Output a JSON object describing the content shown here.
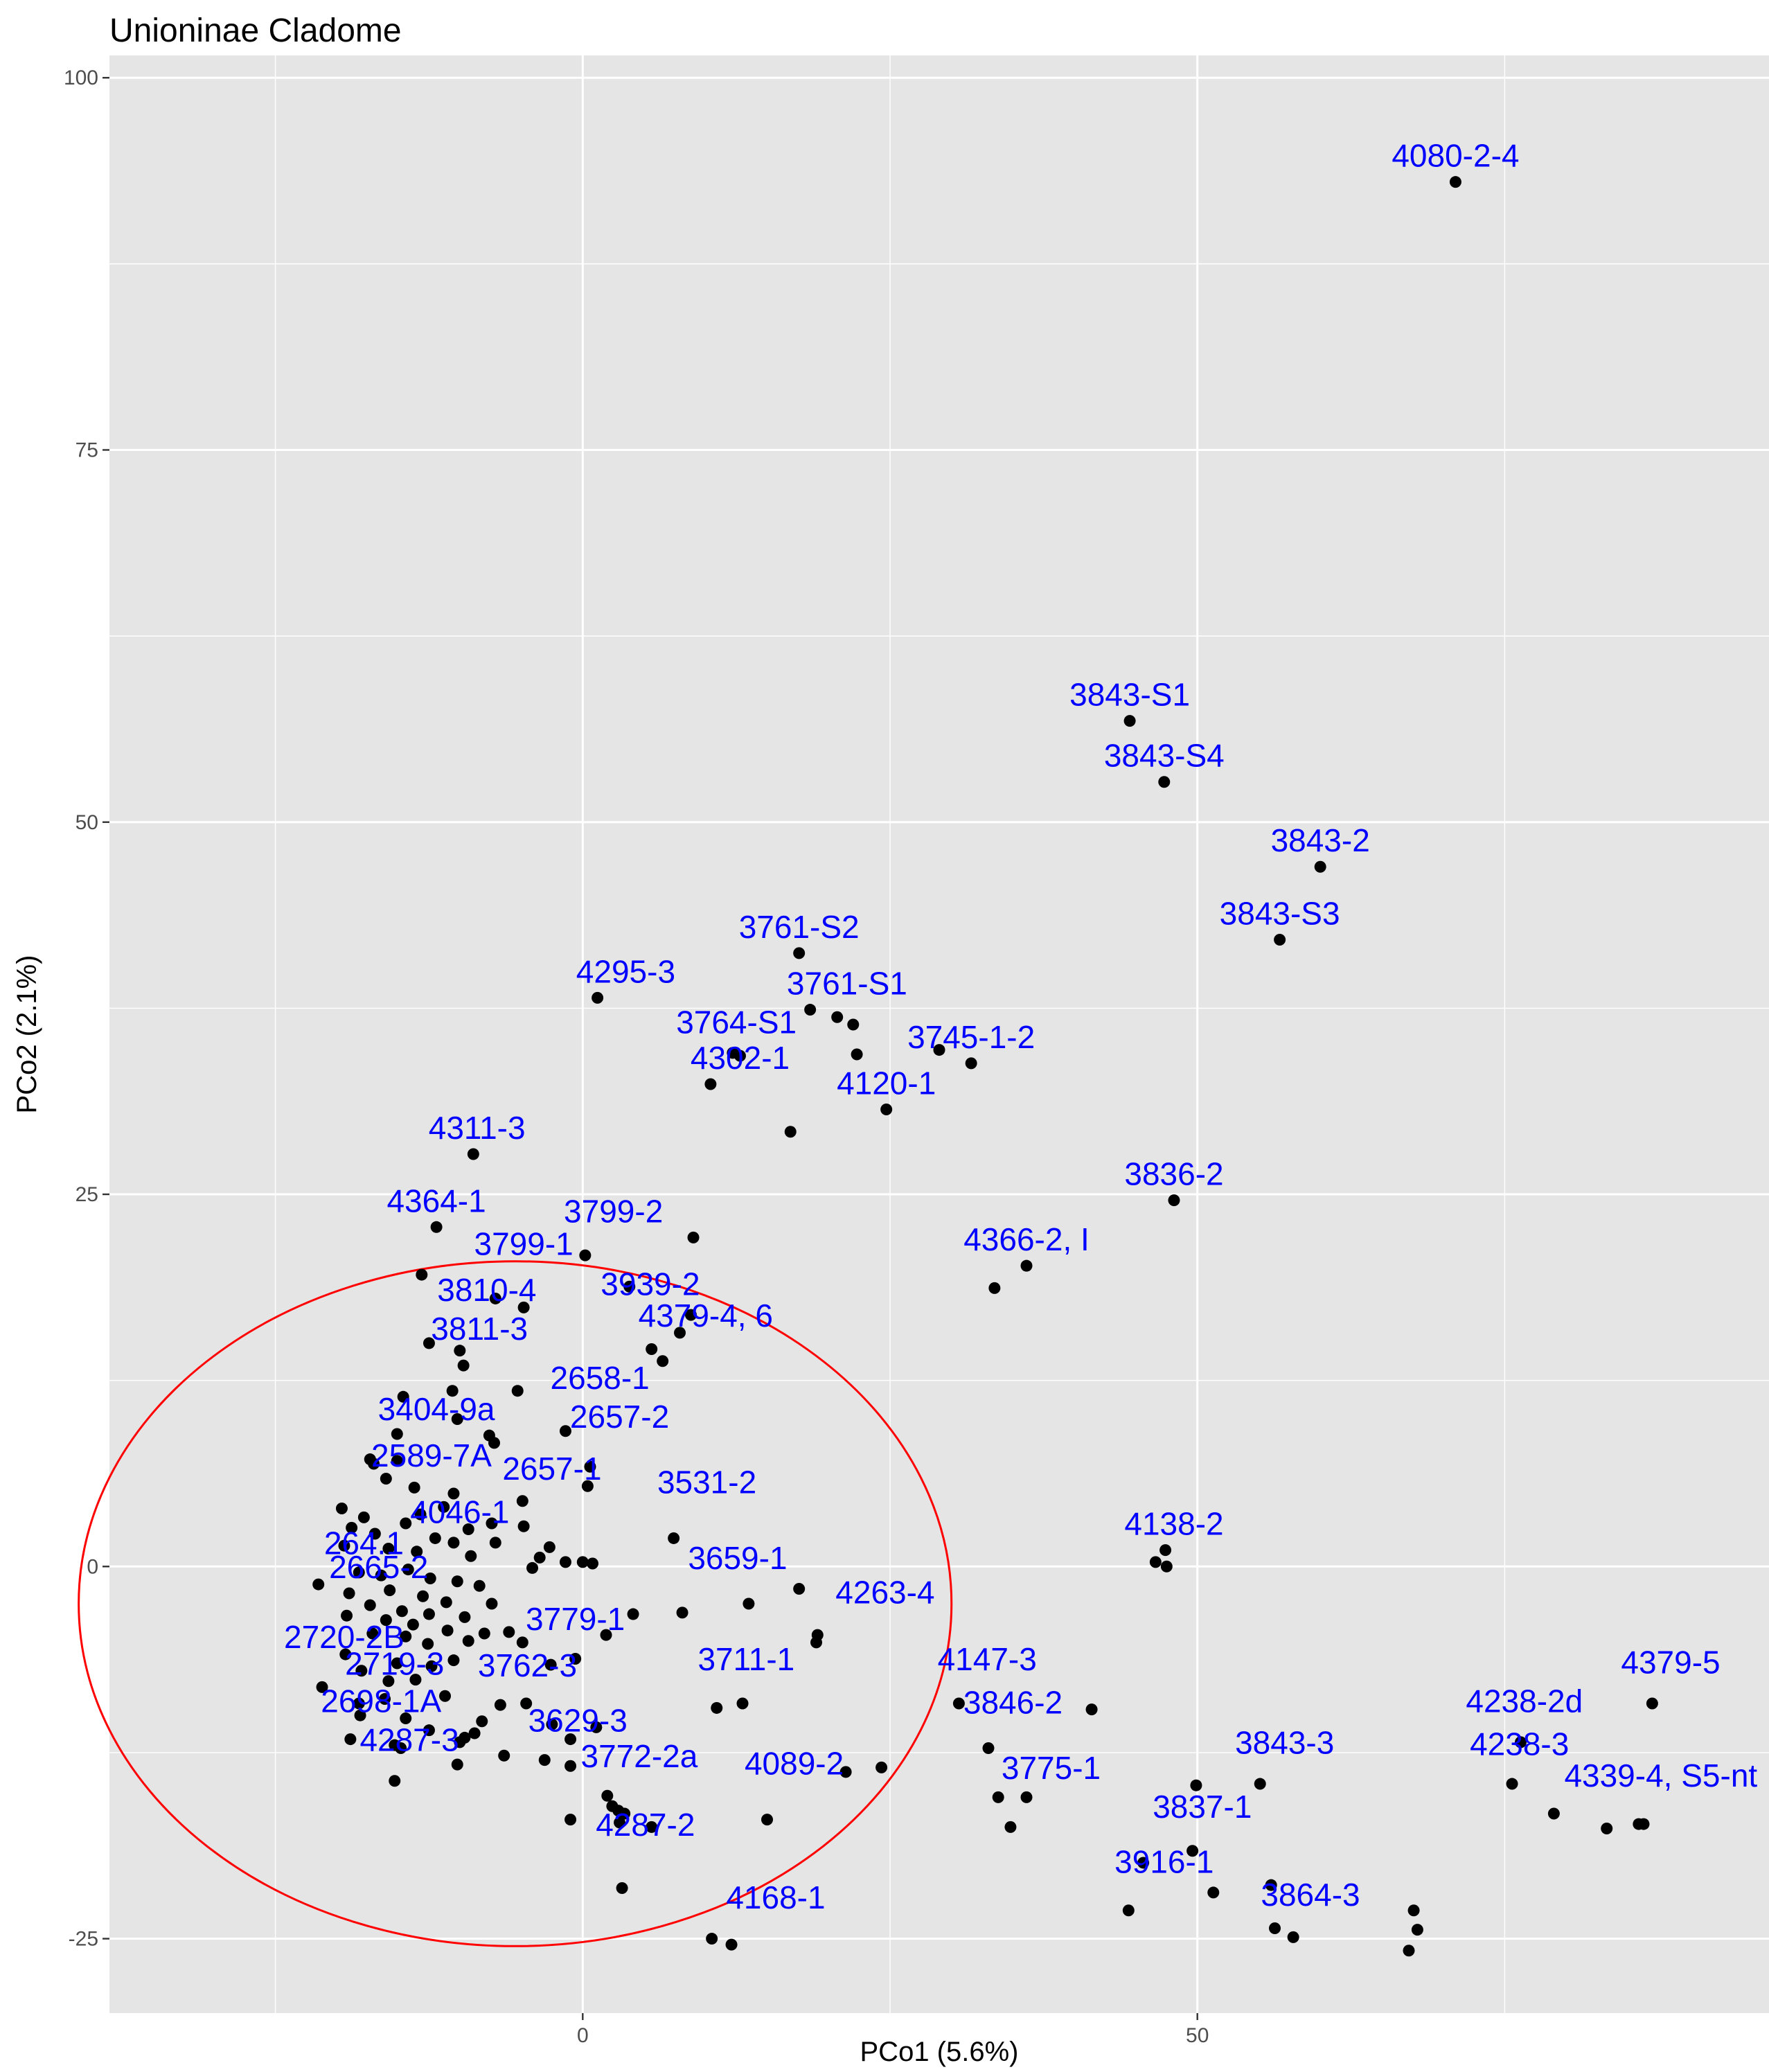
{
  "chart_data": {
    "type": "scatter",
    "title": "Unioninae Cladome",
    "xlabel": "PCo1 (5.6%)",
    "ylabel": "PCo2 (2.1%)",
    "xlim": [
      -38.5,
      96.5
    ],
    "ylim": [
      -30,
      101.5
    ],
    "x_ticks": [
      0,
      50
    ],
    "x_tick_labels": [
      "0",
      "50"
    ],
    "x_minor_ticks": [
      -25,
      25,
      75
    ],
    "y_ticks": [
      -25,
      0,
      25,
      50,
      75,
      100
    ],
    "y_tick_labels": [
      "-25",
      "0",
      "25",
      "50",
      "75",
      "100"
    ],
    "y_minor_ticks": [
      -12.5,
      12.5,
      37.5,
      62.5,
      87.5
    ],
    "grid": true,
    "colors": {
      "panel": "#E5E5E5",
      "points": "#000000",
      "labels": "#0000FF",
      "ellipse": "#FF0000"
    },
    "ellipse": {
      "center": [
        -5.5,
        -2.5
      ],
      "semi_x": 35.5,
      "semi_y": 23
    },
    "points": [
      {
        "x": 71,
        "y": 93
      },
      {
        "x": 44.5,
        "y": 56.8
      },
      {
        "x": 47.3,
        "y": 52.7
      },
      {
        "x": 60,
        "y": 47
      },
      {
        "x": 56.7,
        "y": 42.1
      },
      {
        "x": 17.6,
        "y": 41.2
      },
      {
        "x": 18.5,
        "y": 37.4
      },
      {
        "x": 20.7,
        "y": 36.9
      },
      {
        "x": 22,
        "y": 36.4
      },
      {
        "x": 22.3,
        "y": 34.4
      },
      {
        "x": 1.2,
        "y": 38.2
      },
      {
        "x": 12.2,
        "y": 34.5
      },
      {
        "x": 12.8,
        "y": 34.3
      },
      {
        "x": 10.4,
        "y": 32.4
      },
      {
        "x": 29,
        "y": 34.7
      },
      {
        "x": 31.6,
        "y": 33.8
      },
      {
        "x": 24.7,
        "y": 30.7
      },
      {
        "x": 16.9,
        "y": 29.2
      },
      {
        "x": -8.9,
        "y": 27.7
      },
      {
        "x": 48.1,
        "y": 24.6
      },
      {
        "x": -11.9,
        "y": 22.8
      },
      {
        "x": 9.0,
        "y": 22.1
      },
      {
        "x": 36.1,
        "y": 20.2
      },
      {
        "x": 33.5,
        "y": 18.7
      },
      {
        "x": -13.1,
        "y": 19.6
      },
      {
        "x": 0.2,
        "y": 20.9
      },
      {
        "x": 3.8,
        "y": 18.8
      },
      {
        "x": -7.1,
        "y": 18.0
      },
      {
        "x": -4.8,
        "y": 17.4
      },
      {
        "x": 8.8,
        "y": 16.9
      },
      {
        "x": 7.9,
        "y": 15.7
      },
      {
        "x": 5.6,
        "y": 14.6
      },
      {
        "x": 6.5,
        "y": 13.8
      },
      {
        "x": -12.5,
        "y": 15
      },
      {
        "x": -10,
        "y": 14.5
      },
      {
        "x": -9.7,
        "y": 13.5
      },
      {
        "x": -10.6,
        "y": 11.8
      },
      {
        "x": -5.3,
        "y": 11.8
      },
      {
        "x": -14.6,
        "y": 11.4
      },
      {
        "x": -10.2,
        "y": 9.9
      },
      {
        "x": -1.4,
        "y": 9.1
      },
      {
        "x": -7.6,
        "y": 8.8
      },
      {
        "x": -7.2,
        "y": 8.3
      },
      {
        "x": -15.1,
        "y": 8.9
      },
      {
        "x": 0.6,
        "y": 6.7
      },
      {
        "x": 0.4,
        "y": 5.4
      },
      {
        "x": -17.3,
        "y": 7.2
      },
      {
        "x": -17.0,
        "y": 6.9
      },
      {
        "x": -15.1,
        "y": 7.1
      },
      {
        "x": -16.0,
        "y": 5.9
      },
      {
        "x": -13.7,
        "y": 5.3
      },
      {
        "x": -10.5,
        "y": 4.9
      },
      {
        "x": -4.9,
        "y": 4.4
      },
      {
        "x": -11.3,
        "y": 4.0
      },
      {
        "x": -13.2,
        "y": 3.5
      },
      {
        "x": -17.8,
        "y": 3.3
      },
      {
        "x": -19.6,
        "y": 3.9
      },
      {
        "x": -7.4,
        "y": 2.9
      },
      {
        "x": -4.8,
        "y": 2.7
      },
      {
        "x": 7.4,
        "y": 1.9
      },
      {
        "x": -9.3,
        "y": 2.5
      },
      {
        "x": -14.4,
        "y": 2.9
      },
      {
        "x": -16.9,
        "y": 2.2
      },
      {
        "x": -18.8,
        "y": 2.6
      },
      {
        "x": -12.0,
        "y": 1.9
      },
      {
        "x": -10.5,
        "y": 1.6
      },
      {
        "x": -7.1,
        "y": 1.6
      },
      {
        "x": -2.7,
        "y": 1.3
      },
      {
        "x": -15.8,
        "y": 1.2
      },
      {
        "x": -19.4,
        "y": 1.4
      },
      {
        "x": -13.5,
        "y": 1.0
      },
      {
        "x": -9.1,
        "y": 0.7
      },
      {
        "x": -3.5,
        "y": 0.6
      },
      {
        "x": -1.4,
        "y": 0.3
      },
      {
        "x": 0,
        "y": 0.3
      },
      {
        "x": 0.8,
        "y": 0.2
      },
      {
        "x": 46.6,
        "y": 0.3
      },
      {
        "x": 47.4,
        "y": 1.1
      },
      {
        "x": 47.5,
        "y": 0.0
      },
      {
        "x": -4.1,
        "y": -0.1
      },
      {
        "x": -14.2,
        "y": -0.2
      },
      {
        "x": -18.2,
        "y": -0.4
      },
      {
        "x": -16.4,
        "y": -0.6
      },
      {
        "x": -12.4,
        "y": -0.8
      },
      {
        "x": -10.2,
        "y": -1.0
      },
      {
        "x": -8.4,
        "y": -1.3
      },
      {
        "x": -21.5,
        "y": -1.2
      },
      {
        "x": -19.0,
        "y": -1.8
      },
      {
        "x": -15.7,
        "y": -1.6
      },
      {
        "x": -13.0,
        "y": -2.0
      },
      {
        "x": -11.1,
        "y": -2.4
      },
      {
        "x": -7.4,
        "y": -2.5
      },
      {
        "x": 17.6,
        "y": -1.5
      },
      {
        "x": 13.5,
        "y": -2.5
      },
      {
        "x": -17.3,
        "y": -2.6
      },
      {
        "x": -14.7,
        "y": -3.0
      },
      {
        "x": -12.5,
        "y": -3.2
      },
      {
        "x": -9.6,
        "y": -3.4
      },
      {
        "x": -19.2,
        "y": -3.3
      },
      {
        "x": -16.0,
        "y": -3.6
      },
      {
        "x": -13.8,
        "y": -3.9
      },
      {
        "x": -11.0,
        "y": -4.3
      },
      {
        "x": -8.0,
        "y": -4.5
      },
      {
        "x": -6.0,
        "y": -4.4
      },
      {
        "x": 4.1,
        "y": -3.2
      },
      {
        "x": 8.1,
        "y": -3.1
      },
      {
        "x": -17.1,
        "y": -4.5
      },
      {
        "x": -14.4,
        "y": -4.7
      },
      {
        "x": -12.6,
        "y": -5.2
      },
      {
        "x": -9.3,
        "y": -5.0
      },
      {
        "x": -4.9,
        "y": -5.1
      },
      {
        "x": 1.9,
        "y": -4.6
      },
      {
        "x": 19.1,
        "y": -4.6
      },
      {
        "x": 19.0,
        "y": -5.1
      },
      {
        "x": -19.3,
        "y": -5.9
      },
      {
        "x": -15.1,
        "y": -6.5
      },
      {
        "x": -12.3,
        "y": -6.7
      },
      {
        "x": -10.5,
        "y": -6.3
      },
      {
        "x": -2.6,
        "y": -6.6
      },
      {
        "x": -0.6,
        "y": -6.2
      },
      {
        "x": -18.0,
        "y": -7.0
      },
      {
        "x": -15.8,
        "y": -7.7
      },
      {
        "x": -13.6,
        "y": -7.6
      },
      {
        "x": -21.2,
        "y": -8.1
      },
      {
        "x": -18.2,
        "y": -9.2
      },
      {
        "x": -16.1,
        "y": -8.9
      },
      {
        "x": -11.2,
        "y": -8.7
      },
      {
        "x": -6.7,
        "y": -9.3
      },
      {
        "x": -4.6,
        "y": -9.2
      },
      {
        "x": 10.9,
        "y": -9.5
      },
      {
        "x": 13.0,
        "y": -9.2
      },
      {
        "x": 30.6,
        "y": -9.2
      },
      {
        "x": 41.4,
        "y": -9.6
      },
      {
        "x": -18.1,
        "y": -10.0
      },
      {
        "x": -14.4,
        "y": -10.2
      },
      {
        "x": -8.2,
        "y": -10.4
      },
      {
        "x": -2.5,
        "y": -10.6
      },
      {
        "x": 1.1,
        "y": -10.8
      },
      {
        "x": -12.5,
        "y": -11.0
      },
      {
        "x": -9.6,
        "y": -11.5
      },
      {
        "x": -8.8,
        "y": -11.2
      },
      {
        "x": -1.0,
        "y": -11.6
      },
      {
        "x": 87.0,
        "y": -9.2
      },
      {
        "x": -18.9,
        "y": -11.6
      },
      {
        "x": -15.3,
        "y": -12.0
      },
      {
        "x": -10.0,
        "y": -11.8
      },
      {
        "x": 33.0,
        "y": -12.2
      },
      {
        "x": 76.3,
        "y": -11.8
      },
      {
        "x": -14.8,
        "y": -12.2
      },
      {
        "x": -6.4,
        "y": -12.7
      },
      {
        "x": -3.1,
        "y": -13.0
      },
      {
        "x": -10.2,
        "y": -13.3
      },
      {
        "x": -1.0,
        "y": -13.4
      },
      {
        "x": 21.4,
        "y": -13.8
      },
      {
        "x": 24.3,
        "y": -13.5
      },
      {
        "x": -15.3,
        "y": -14.4
      },
      {
        "x": 49.9,
        "y": -14.7
      },
      {
        "x": 55.1,
        "y": -14.6
      },
      {
        "x": 75.6,
        "y": -14.6
      },
      {
        "x": 33.8,
        "y": -15.5
      },
      {
        "x": 36.1,
        "y": -15.5
      },
      {
        "x": 2.0,
        "y": -15.4
      },
      {
        "x": 2.4,
        "y": -16.1
      },
      {
        "x": 2.9,
        "y": -16.4
      },
      {
        "x": 3.4,
        "y": -16.6
      },
      {
        "x": 79.0,
        "y": -16.6
      },
      {
        "x": -1.0,
        "y": -17.0
      },
      {
        "x": 3.0,
        "y": -17.2
      },
      {
        "x": 5.6,
        "y": -17.5
      },
      {
        "x": 15.0,
        "y": -17.0
      },
      {
        "x": 34.8,
        "y": -17.5
      },
      {
        "x": 83.3,
        "y": -17.6
      },
      {
        "x": 85.9,
        "y": -17.3
      },
      {
        "x": 86.3,
        "y": -17.3
      },
      {
        "x": 49.6,
        "y": -19.1
      },
      {
        "x": 45.6,
        "y": -19.9
      },
      {
        "x": 3.2,
        "y": -21.6
      },
      {
        "x": 51.3,
        "y": -21.9
      },
      {
        "x": 56.0,
        "y": -21.4
      },
      {
        "x": 67.6,
        "y": -23.1
      },
      {
        "x": 44.4,
        "y": -23.1
      },
      {
        "x": 56.3,
        "y": -24.3
      },
      {
        "x": 67.9,
        "y": -24.4
      },
      {
        "x": 57.8,
        "y": -24.9
      },
      {
        "x": 10.5,
        "y": -25.0
      },
      {
        "x": 12.1,
        "y": -25.4
      },
      {
        "x": 67.2,
        "y": -25.8
      }
    ],
    "labels": [
      {
        "text": "4080-2-4",
        "x": 71,
        "y": 93
      },
      {
        "text": "3843-S1",
        "x": 44.5,
        "y": 56.8
      },
      {
        "text": "3843-S4",
        "x": 47.3,
        "y": 52.7
      },
      {
        "text": "3843-2",
        "x": 60,
        "y": 47
      },
      {
        "text": "3843-S3",
        "x": 56.7,
        "y": 42.1
      },
      {
        "text": "3761-S2",
        "x": 17.6,
        "y": 41.2
      },
      {
        "text": "4295-3",
        "x": 3.5,
        "y": 38.2
      },
      {
        "text": "3761-S1",
        "x": 21.5,
        "y": 37.4
      },
      {
        "text": "3764-S1",
        "x": 12.5,
        "y": 34.8
      },
      {
        "text": "3745-1-2",
        "x": 31.6,
        "y": 33.8
      },
      {
        "text": "4302-1",
        "x": 12.8,
        "y": 32.4
      },
      {
        "text": "4120-1",
        "x": 24.7,
        "y": 30.7
      },
      {
        "text": "4311-3",
        "x": -8.6,
        "y": 27.7
      },
      {
        "text": "3836-2",
        "x": 48.1,
        "y": 24.6
      },
      {
        "text": "4364-1",
        "x": -11.9,
        "y": 22.8
      },
      {
        "text": "3799-2",
        "x": 2.5,
        "y": 22.1
      },
      {
        "text": "4366-2, I",
        "x": 36.1,
        "y": 20.2
      },
      {
        "text": "3799-1",
        "x": -4.8,
        "y": 19.9
      },
      {
        "text": "3939-2",
        "x": 5.5,
        "y": 17.2
      },
      {
        "text": "3810-4",
        "x": -7.8,
        "y": 16.8
      },
      {
        "text": "4379-4, 6",
        "x": 10.0,
        "y": 15.1
      },
      {
        "text": "3811-3",
        "x": -8.4,
        "y": 14.2
      },
      {
        "text": "2658-1",
        "x": 1.4,
        "y": 10.9
      },
      {
        "text": "3404-9a",
        "x": -11.9,
        "y": 8.8
      },
      {
        "text": "2657-2",
        "x": 3.0,
        "y": 8.3
      },
      {
        "text": "2589-7A",
        "x": -12.3,
        "y": 5.7
      },
      {
        "text": "2657-1",
        "x": -2.5,
        "y": 4.8
      },
      {
        "text": "3531-2",
        "x": 10.1,
        "y": 3.9
      },
      {
        "text": "4046-1",
        "x": -10.0,
        "y": 1.9
      },
      {
        "text": "4138-2",
        "x": 48.1,
        "y": 1.1
      },
      {
        "text": "264.1",
        "x": -17.8,
        "y": -0.2
      },
      {
        "text": "3659-1",
        "x": 12.6,
        "y": -1.2
      },
      {
        "text": "2665-2",
        "x": -16.6,
        "y": -1.8
      },
      {
        "text": "4263-4",
        "x": 24.6,
        "y": -3.5
      },
      {
        "text": "3779-1",
        "x": -0.6,
        "y": -5.3
      },
      {
        "text": "2720-2B",
        "x": -19.4,
        "y": -6.5
      },
      {
        "text": "4147-3",
        "x": 32.9,
        "y": -8.0
      },
      {
        "text": "3711-1",
        "x": 13.3,
        "y": -8.0
      },
      {
        "text": "2719-3",
        "x": -15.3,
        "y": -8.3
      },
      {
        "text": "3762-3",
        "x": -4.5,
        "y": -8.4
      },
      {
        "text": "4379-5",
        "x": 88.5,
        "y": -8.2
      },
      {
        "text": "3846-2",
        "x": 35.0,
        "y": -10.9
      },
      {
        "text": "2698-1A",
        "x": -16.4,
        "y": -10.8
      },
      {
        "text": "4238-2d",
        "x": 76.6,
        "y": -10.8
      },
      {
        "text": "3629-3",
        "x": -0.4,
        "y": -12.1
      },
      {
        "text": "4287-3",
        "x": -14.1,
        "y": -13.4
      },
      {
        "text": "3843-3",
        "x": 57.1,
        "y": -13.6
      },
      {
        "text": "4238-3",
        "x": 76.2,
        "y": -13.7
      },
      {
        "text": "3772-2a",
        "x": 4.6,
        "y": -14.5
      },
      {
        "text": "4089-2",
        "x": 17.2,
        "y": -15.0
      },
      {
        "text": "3775-1",
        "x": 38.1,
        "y": -15.3
      },
      {
        "text": "4339-4, S5-nt",
        "x": 87.7,
        "y": -15.8
      },
      {
        "text": "3837-1",
        "x": 50.4,
        "y": -17.9
      },
      {
        "text": "4287-2",
        "x": 5.1,
        "y": -19.1
      },
      {
        "text": "3916-1",
        "x": 47.3,
        "y": -21.6
      },
      {
        "text": "3864-3",
        "x": 59.2,
        "y": -23.8
      },
      {
        "text": "4168-1",
        "x": 15.7,
        "y": -24.0
      }
    ]
  }
}
